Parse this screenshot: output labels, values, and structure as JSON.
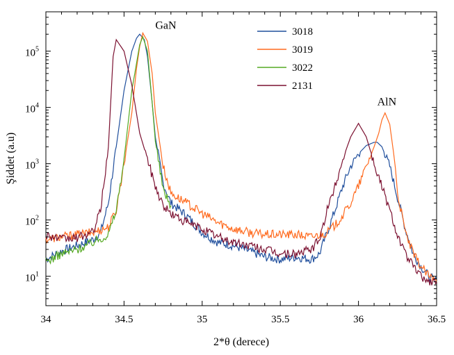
{
  "chart_data": {
    "type": "line",
    "xlabel": "2*θ (derece)",
    "ylabel": "Şiddet (a.u)",
    "xlim": [
      34,
      36.5
    ],
    "ylim": [
      3,
      500000
    ],
    "yscale": "log",
    "x_ticks": [
      {
        "value": 34,
        "label": "34"
      },
      {
        "value": 34.5,
        "label": "34.5"
      },
      {
        "value": 35,
        "label": "35"
      },
      {
        "value": 35.5,
        "label": "35.5"
      },
      {
        "value": 36,
        "label": "36"
      },
      {
        "value": 36.5,
        "label": "36.5"
      }
    ],
    "y_ticks": [
      {
        "value": 10,
        "base": "10",
        "exp": "1"
      },
      {
        "value": 100,
        "base": "10",
        "exp": "2"
      },
      {
        "value": 1000,
        "base": "10",
        "exp": "3"
      },
      {
        "value": 10000,
        "base": "10",
        "exp": "4"
      },
      {
        "value": 100000,
        "base": "10",
        "exp": "5"
      }
    ],
    "grid": false,
    "legend_position": "top-center",
    "annotations": [
      {
        "text": "GaN",
        "x": 34.7,
        "y": 250000
      },
      {
        "text": "AlN",
        "x": 36.12,
        "y": 11000
      }
    ],
    "series": [
      {
        "name": "3018",
        "color": "#1f4e9c",
        "x": [
          34.0,
          34.1,
          34.2,
          34.3,
          34.35,
          34.4,
          34.45,
          34.5,
          34.55,
          34.58,
          34.6,
          34.63,
          34.65,
          34.68,
          34.7,
          34.75,
          34.8,
          34.9,
          35.0,
          35.1,
          35.2,
          35.3,
          35.4,
          35.5,
          35.6,
          35.7,
          35.75,
          35.8,
          35.85,
          35.9,
          35.95,
          36.0,
          36.05,
          36.1,
          36.12,
          36.15,
          36.2,
          36.25,
          36.3,
          36.35,
          36.4,
          36.45,
          36.5
        ],
        "y": [
          20,
          28,
          35,
          45,
          60,
          200,
          2000,
          20000,
          100000,
          170000,
          200000,
          160000,
          80000,
          12000,
          3000,
          450,
          200,
          120,
          60,
          40,
          35,
          28,
          22,
          20,
          22,
          20,
          25,
          60,
          150,
          400,
          900,
          1500,
          2100,
          2400,
          2400,
          2000,
          900,
          250,
          70,
          25,
          15,
          10,
          8
        ]
      },
      {
        "name": "3019",
        "color": "#ff6a1e",
        "x": [
          34.0,
          34.1,
          34.2,
          34.3,
          34.4,
          34.45,
          34.5,
          34.55,
          34.58,
          34.6,
          34.62,
          34.65,
          34.68,
          34.7,
          34.75,
          34.8,
          34.9,
          35.0,
          35.1,
          35.2,
          35.3,
          35.4,
          35.5,
          35.6,
          35.7,
          35.8,
          35.85,
          35.9,
          35.95,
          36.0,
          36.05,
          36.1,
          36.13,
          36.15,
          36.17,
          36.2,
          36.23,
          36.25,
          36.3,
          36.35,
          36.4,
          36.45,
          36.5
        ],
        "y": [
          45,
          50,
          55,
          60,
          75,
          150,
          1000,
          8000,
          50000,
          120000,
          210000,
          150000,
          40000,
          8000,
          900,
          300,
          200,
          130,
          90,
          70,
          60,
          55,
          55,
          55,
          50,
          60,
          80,
          120,
          200,
          400,
          900,
          2000,
          3500,
          6000,
          8000,
          5000,
          1200,
          300,
          60,
          25,
          15,
          10,
          8
        ]
      },
      {
        "name": "3022",
        "color": "#55aa22",
        "x": [
          34.0,
          34.1,
          34.2,
          34.3,
          34.4,
          34.45,
          34.5,
          34.55,
          34.6,
          34.62,
          34.65,
          34.68,
          34.7,
          34.75,
          34.8
        ],
        "y": [
          18,
          25,
          30,
          40,
          55,
          150,
          1200,
          20000,
          130000,
          180000,
          100000,
          12000,
          2500,
          350,
          180
        ]
      },
      {
        "name": "2131",
        "color": "#7b1030",
        "x": [
          34.0,
          34.1,
          34.2,
          34.3,
          34.35,
          34.4,
          34.43,
          34.45,
          34.5,
          34.55,
          34.6,
          34.65,
          34.7,
          34.75,
          34.8,
          34.9,
          35.0,
          35.1,
          35.2,
          35.3,
          35.4,
          35.5,
          35.6,
          35.7,
          35.75,
          35.8,
          35.85,
          35.9,
          35.95,
          36.0,
          36.05,
          36.1,
          36.15,
          36.2,
          36.25,
          36.3,
          36.35,
          36.4,
          36.45,
          36.5
        ],
        "y": [
          55,
          45,
          48,
          60,
          150,
          2000,
          80000,
          160000,
          100000,
          25000,
          3500,
          1200,
          400,
          180,
          130,
          90,
          70,
          50,
          40,
          35,
          30,
          25,
          25,
          30,
          45,
          150,
          400,
          1200,
          3000,
          5200,
          3000,
          1000,
          400,
          150,
          55,
          25,
          15,
          10,
          8,
          8
        ]
      }
    ]
  }
}
